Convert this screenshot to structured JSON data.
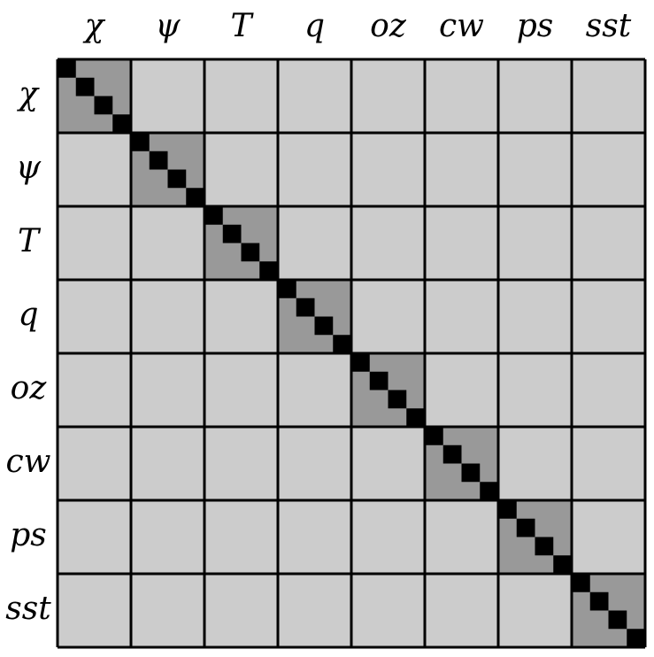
{
  "variables": [
    "χ",
    "ψ",
    "T",
    "q",
    "oz",
    "cw",
    "ps",
    "sst"
  ],
  "sub_blocks_per_variable": 4,
  "colors": {
    "diagonal_block": "#999999",
    "off_diagonal_block": "#cccccc",
    "diagonal_entries": "#000000",
    "grid_lines": "#000000"
  }
}
